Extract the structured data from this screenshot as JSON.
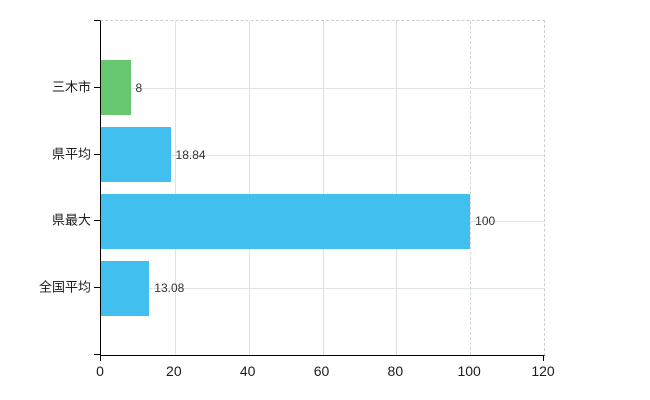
{
  "chart_data": {
    "type": "bar",
    "orientation": "horizontal",
    "title": "",
    "xlabel": "",
    "ylabel": "",
    "categories": [
      "三木市",
      "県平均",
      "県最大",
      "全国平均"
    ],
    "values": [
      8,
      18.84,
      100,
      13.08
    ],
    "value_labels": [
      "8",
      "18.84",
      "100",
      "13.08"
    ],
    "bar_colors": [
      "#68c771",
      "#41bfef",
      "#41bfef",
      "#41bfef"
    ],
    "xlim": [
      0,
      120
    ],
    "x_ticks": [
      "0",
      "20",
      "40",
      "60",
      "80",
      "100",
      "120"
    ],
    "grid": "on",
    "legend": "none"
  },
  "colors": {
    "background": "#ffffff",
    "axis": "#000000",
    "v_gridline": "#e1e1e1",
    "h_gridline": "#dde3dd",
    "dashed_border": "#d2cbd2",
    "bar_green": "#68c771",
    "bar_blue": "#41bfef",
    "value_text": "#333333",
    "label_text": "#1c1c1c"
  }
}
